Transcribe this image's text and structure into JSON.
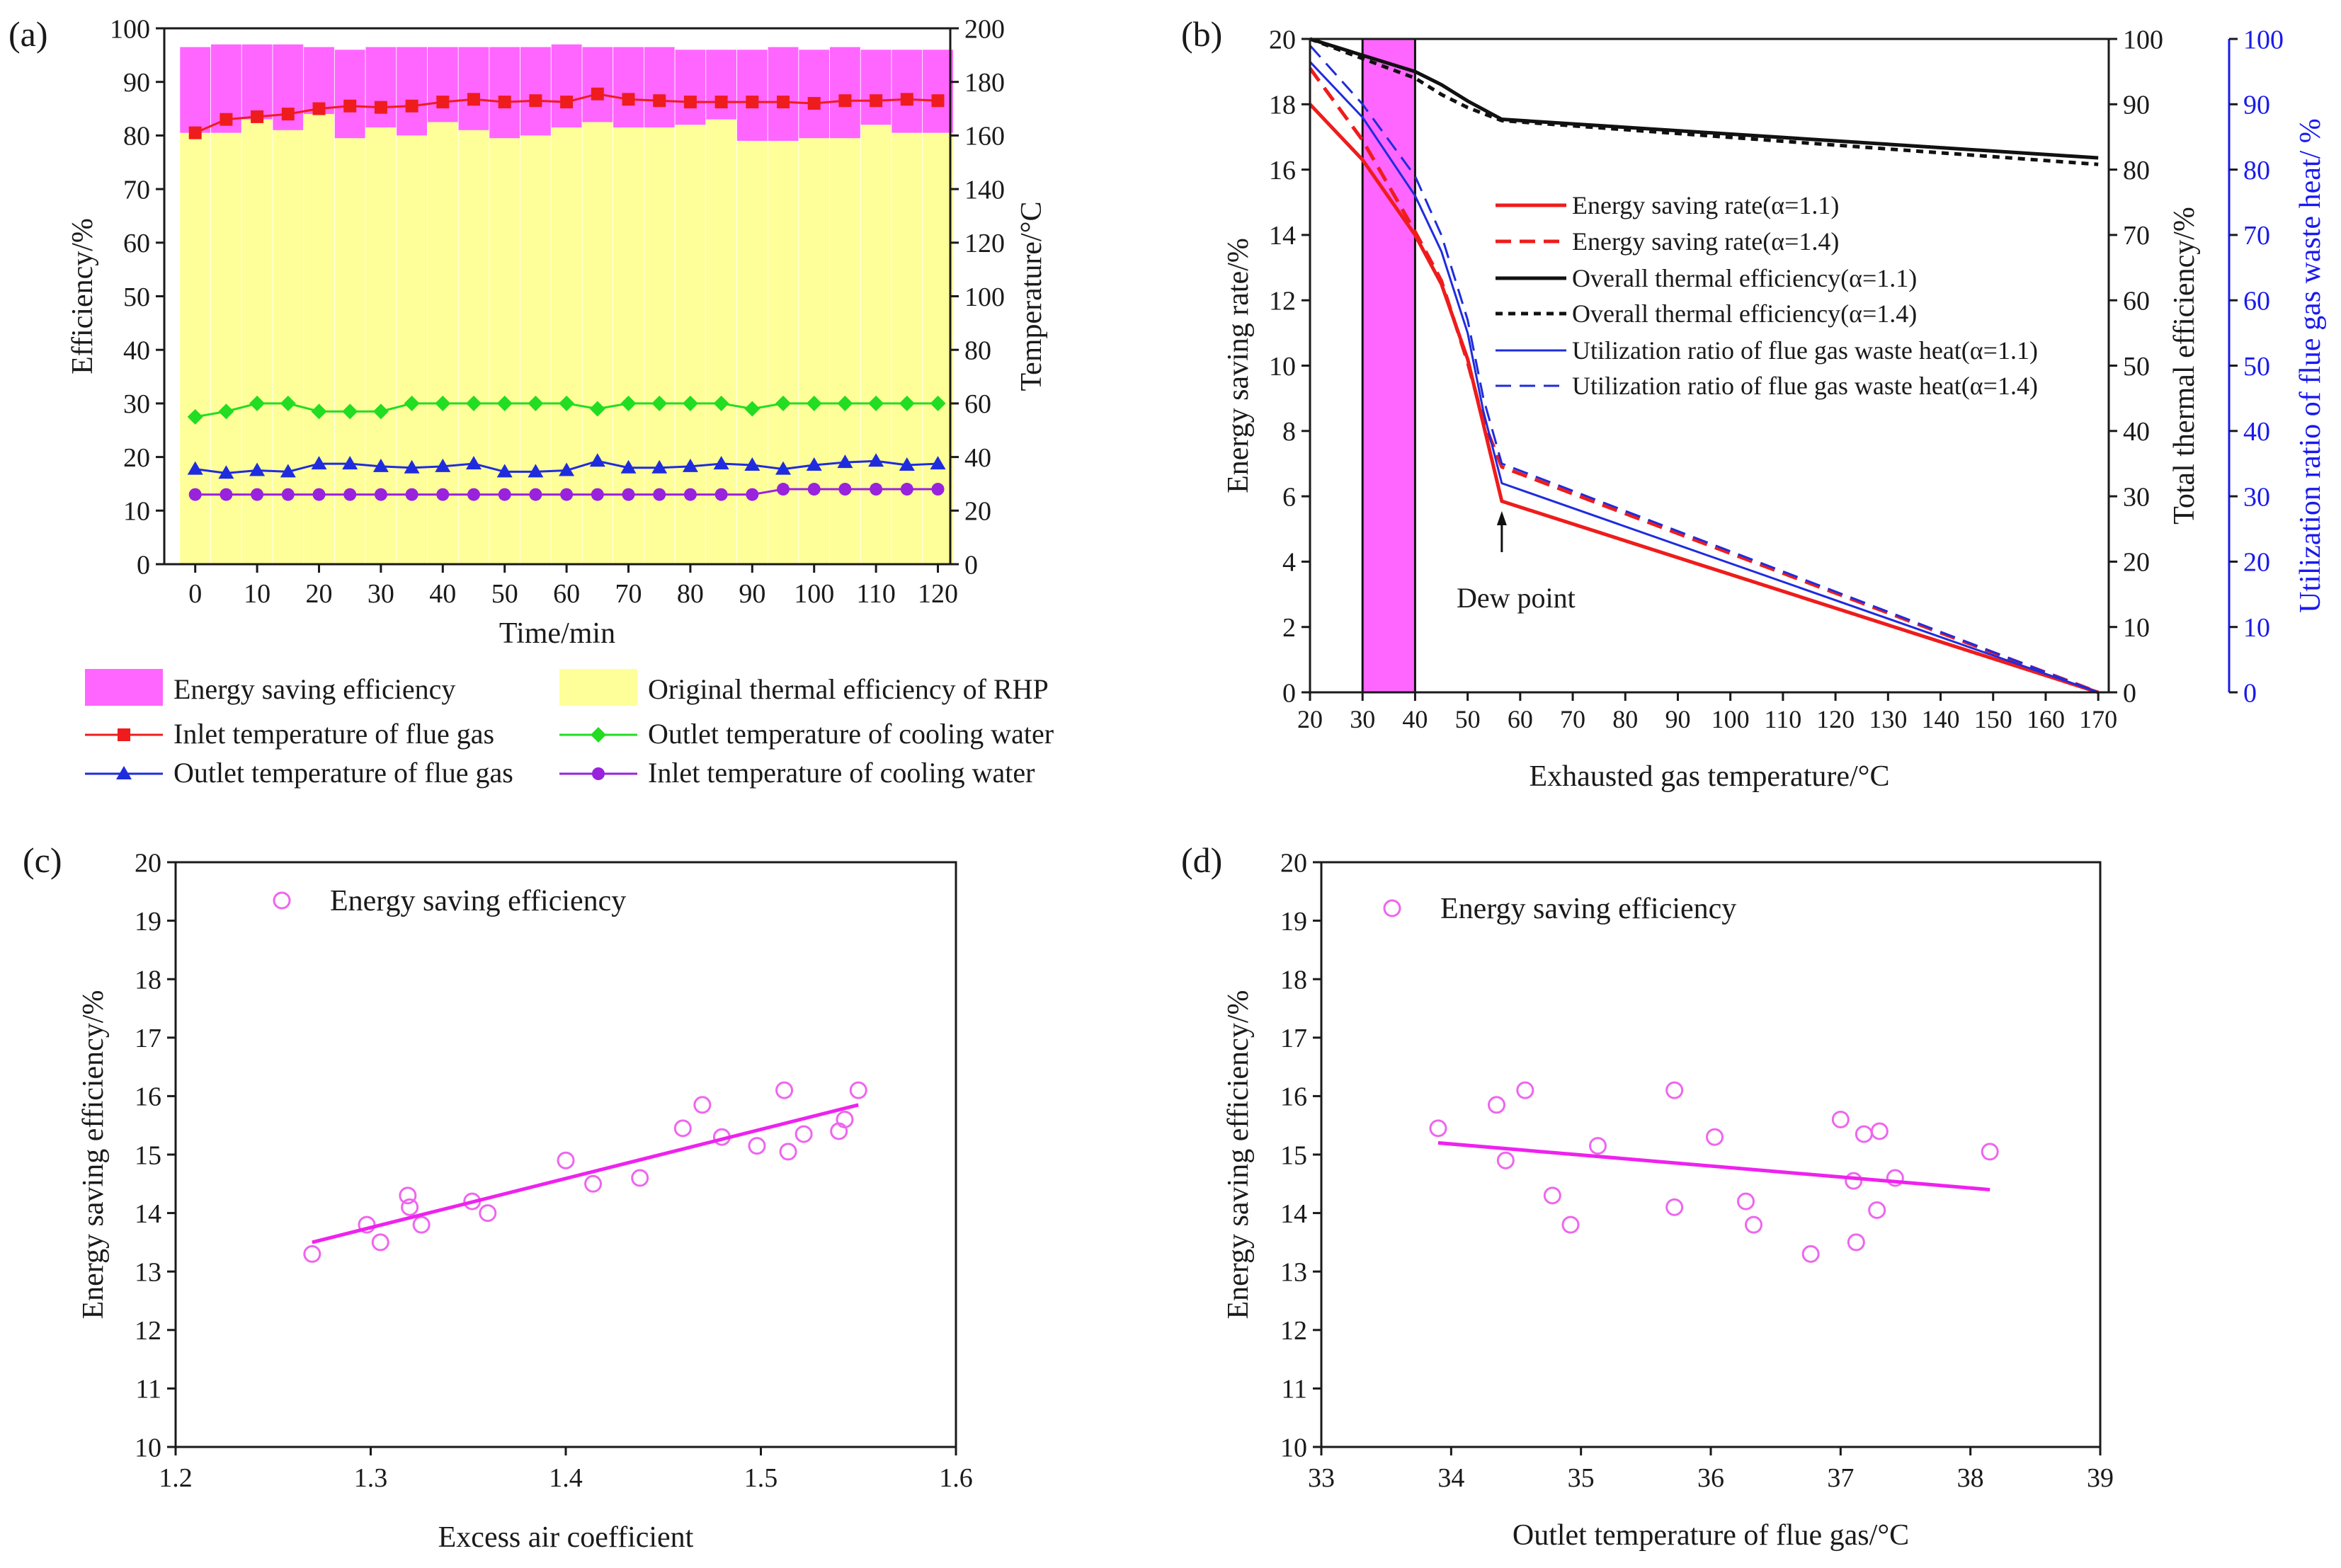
{
  "figure": {
    "panel_labels": [
      "(a)",
      "(b)",
      "(c)",
      "(d)"
    ],
    "annotation_dew_point": "Dew point"
  },
  "colors": {
    "magenta": "#ff66ff",
    "yellow": "#ffff99",
    "red": "#ee1c1c",
    "green": "#22dd22",
    "blue": "#1f2cdd",
    "purple": "#9922dd",
    "black": "#111111",
    "scatter": "#ee66ee",
    "fit": "#ee22ee",
    "axis_blue": "#1a1aee"
  },
  "chart_data": [
    {
      "id": "a",
      "type": "bar",
      "stacked": true,
      "xlabel": "Time/min",
      "ylabel": "Efficiency/%",
      "y2label": "Temperature/°C",
      "xlim": [
        -5,
        122
      ],
      "ylim": [
        0,
        100
      ],
      "y2lim": [
        0,
        200
      ],
      "xticks": [
        0,
        10,
        20,
        30,
        40,
        50,
        60,
        70,
        80,
        90,
        100,
        110,
        120
      ],
      "yticks": [
        0,
        10,
        20,
        30,
        40,
        50,
        60,
        70,
        80,
        90,
        100
      ],
      "y2ticks": [
        0,
        20,
        40,
        60,
        80,
        100,
        120,
        140,
        160,
        180,
        200
      ],
      "categories": [
        0,
        5,
        10,
        15,
        20,
        25,
        30,
        35,
        40,
        45,
        50,
        55,
        60,
        65,
        70,
        75,
        80,
        85,
        90,
        95,
        100,
        105,
        110,
        115,
        120
      ],
      "bar_series": [
        {
          "name": "Original thermal efficiency of RHP",
          "values": [
            80.5,
            80.5,
            83,
            81,
            84,
            79.5,
            81.5,
            80,
            82.5,
            81,
            79.5,
            80,
            81.5,
            82.5,
            81.5,
            81.5,
            82,
            83,
            79,
            79,
            79.5,
            79.5,
            82,
            80.5,
            80.5
          ]
        },
        {
          "name": "Energy saving efficiency",
          "values": [
            16,
            16.5,
            14,
            16,
            12.5,
            16.5,
            15,
            16.5,
            14,
            15.5,
            17,
            16.5,
            15.5,
            14,
            15,
            15,
            14,
            13,
            17,
            17.5,
            16.5,
            17,
            14,
            15.5,
            15.5
          ]
        }
      ],
      "line_series": [
        {
          "name": "Inlet temperature of flue gas",
          "axis": "right",
          "marker": "square",
          "x": [
            0,
            5,
            10,
            15,
            20,
            25,
            30,
            35,
            40,
            45,
            50,
            55,
            60,
            65,
            70,
            75,
            80,
            85,
            90,
            95,
            100,
            105,
            110,
            115,
            120
          ],
          "values": [
            161,
            166,
            167,
            168,
            170,
            171,
            170.5,
            171,
            172.5,
            173.5,
            172.5,
            173,
            172.5,
            175.5,
            173.5,
            173,
            172.5,
            172.5,
            172.5,
            172.5,
            172,
            173,
            173,
            173.5,
            173
          ]
        },
        {
          "name": "Outlet temperature of cooling water",
          "axis": "right",
          "marker": "diamond",
          "x": [
            0,
            5,
            10,
            15,
            20,
            25,
            30,
            35,
            40,
            45,
            50,
            55,
            60,
            65,
            70,
            75,
            80,
            85,
            90,
            95,
            100,
            105,
            110,
            115,
            120
          ],
          "values": [
            55,
            57,
            60,
            60,
            57,
            57,
            57,
            60,
            60,
            60,
            60,
            60,
            60,
            58,
            60,
            60,
            60,
            60,
            58,
            60,
            60,
            60,
            60,
            60,
            60
          ]
        },
        {
          "name": "Outlet temperature of flue gas",
          "axis": "right",
          "marker": "triangle",
          "x": [
            0,
            5,
            10,
            15,
            20,
            25,
            30,
            35,
            40,
            45,
            50,
            55,
            60,
            65,
            70,
            75,
            80,
            85,
            90,
            95,
            100,
            105,
            110,
            115,
            120
          ],
          "values": [
            35.5,
            34,
            35,
            34.5,
            37.5,
            37.5,
            36.5,
            36,
            36.5,
            37.5,
            34.5,
            34.5,
            35,
            38.5,
            36,
            36,
            36.5,
            37.5,
            37,
            35.5,
            37,
            38,
            38.5,
            37,
            37.5
          ]
        },
        {
          "name": "Inlet temperature of cooling water",
          "axis": "right",
          "marker": "circle",
          "x": [
            0,
            5,
            10,
            15,
            20,
            25,
            30,
            35,
            40,
            45,
            50,
            55,
            60,
            65,
            70,
            75,
            80,
            85,
            90,
            95,
            100,
            105,
            110,
            115,
            120
          ],
          "values": [
            26,
            26,
            26,
            26,
            26,
            26,
            26,
            26,
            26,
            26,
            26,
            26,
            26,
            26,
            26,
            26,
            26,
            26,
            26,
            28,
            28,
            28,
            28,
            28,
            28
          ]
        }
      ],
      "legend": [
        {
          "label": "Energy saving efficiency",
          "kind": "patch",
          "color": "#ff66ff"
        },
        {
          "label": "Original thermal efficiency of RHP",
          "kind": "patch",
          "color": "#ffff99"
        },
        {
          "label": "Inlet temperature of flue gas",
          "kind": "line",
          "color": "#ee1c1c",
          "marker": "square"
        },
        {
          "label": "Outlet temperature of cooling water",
          "kind": "line",
          "color": "#22dd22",
          "marker": "diamond"
        },
        {
          "label": "Outlet temperature of flue gas",
          "kind": "line",
          "color": "#1f2cdd",
          "marker": "triangle"
        },
        {
          "label": "Inlet temperature of cooling water",
          "kind": "line",
          "color": "#9922dd",
          "marker": "circle"
        }
      ]
    },
    {
      "id": "b",
      "type": "line",
      "xlabel": "Exhausted gas temperature/°C",
      "ylabel": "Energy saving rate/%",
      "y2label": "Total thermal efficiency/%",
      "y3label": "Utilization ratio of flue gas waste heat/ %",
      "xlim": [
        20,
        172
      ],
      "ylim": [
        0,
        20
      ],
      "y2lim": [
        0,
        100
      ],
      "y3lim": [
        0,
        100
      ],
      "xticks": [
        20,
        30,
        40,
        50,
        60,
        70,
        80,
        90,
        100,
        110,
        120,
        130,
        140,
        150,
        160,
        170
      ],
      "yticks": [
        0,
        2,
        4,
        6,
        8,
        10,
        12,
        14,
        16,
        18,
        20
      ],
      "y2ticks": [
        0,
        10,
        20,
        30,
        40,
        50,
        60,
        70,
        80,
        90,
        100
      ],
      "y3ticks": [
        0,
        10,
        20,
        30,
        40,
        50,
        60,
        70,
        80,
        90,
        100
      ],
      "shaded_band": {
        "from": 30,
        "to": 40
      },
      "dew_point_x": 56.5,
      "series": [
        {
          "name": "Energy saving rate(α=1.1)",
          "axis": "left",
          "style": "solid",
          "color": "#ee1c1c",
          "width": 5,
          "x": [
            20,
            30,
            40,
            45,
            50,
            53,
            56.5,
            170
          ],
          "y": [
            18,
            16.3,
            14.0,
            12.5,
            10.2,
            8.2,
            5.85,
            0
          ]
        },
        {
          "name": "Energy saving rate(α=1.4)",
          "axis": "left",
          "style": "dashed",
          "color": "#ee1c1c",
          "width": 5,
          "x": [
            20,
            30,
            40,
            45,
            50,
            53,
            56.5,
            170
          ],
          "y": [
            19.1,
            16.9,
            14.1,
            12.6,
            10.1,
            8.3,
            6.9,
            0
          ]
        },
        {
          "name": "Overall thermal efficiency(α=1.1)",
          "axis": "right",
          "style": "solid",
          "color": "#111111",
          "width": 5,
          "x": [
            20,
            30,
            40,
            45,
            50,
            56.5,
            170
          ],
          "y": [
            100,
            97.5,
            95,
            93,
            90.5,
            87.7,
            81.8
          ]
        },
        {
          "name": "Overall thermal efficiency(α=1.4)",
          "axis": "right",
          "style": "dotted",
          "color": "#111111",
          "width": 5,
          "x": [
            20,
            30,
            40,
            45,
            50,
            56.5,
            170
          ],
          "y": [
            100,
            97,
            94,
            91.5,
            89.5,
            87.5,
            80.8
          ]
        },
        {
          "name": "Utilization ratio of flue gas waste heat(α=1.1)",
          "axis": "right2",
          "style": "solid",
          "color": "#1f2cdd",
          "width": 3,
          "x": [
            20,
            30,
            40,
            45,
            50,
            53,
            56.5,
            170
          ],
          "y": [
            96.5,
            88,
            76,
            67.5,
            55,
            43,
            32,
            0
          ]
        },
        {
          "name": "Utilization ratio of flue gas waste heat(α=1.4)",
          "axis": "right2",
          "style": "dashed",
          "color": "#1f2cdd",
          "width": 3,
          "x": [
            20,
            30,
            40,
            45,
            50,
            53,
            56.5,
            170
          ],
          "y": [
            99,
            90,
            79,
            70,
            57,
            45,
            35,
            0
          ]
        }
      ]
    },
    {
      "id": "c",
      "type": "scatter",
      "xlabel": "Excess air coefficient",
      "ylabel": "Energy saving efficiency/%",
      "xlim": [
        1.2,
        1.6
      ],
      "ylim": [
        10,
        20
      ],
      "xticks": [
        1.2,
        1.3,
        1.4,
        1.5,
        1.6
      ],
      "yticks": [
        10,
        11,
        12,
        13,
        14,
        15,
        16,
        17,
        18,
        19,
        20
      ],
      "legend": "Energy saving efficiency",
      "points": [
        [
          1.27,
          13.3
        ],
        [
          1.298,
          13.8
        ],
        [
          1.305,
          13.5
        ],
        [
          1.319,
          14.3
        ],
        [
          1.32,
          14.1
        ],
        [
          1.326,
          13.8
        ],
        [
          1.352,
          14.2
        ],
        [
          1.36,
          14.0
        ],
        [
          1.4,
          14.9
        ],
        [
          1.414,
          14.5
        ],
        [
          1.438,
          14.6
        ],
        [
          1.46,
          15.45
        ],
        [
          1.47,
          15.85
        ],
        [
          1.48,
          15.3
        ],
        [
          1.498,
          15.15
        ],
        [
          1.512,
          16.1
        ],
        [
          1.514,
          15.05
        ],
        [
          1.522,
          15.35
        ],
        [
          1.54,
          15.4
        ],
        [
          1.543,
          15.6
        ],
        [
          1.55,
          16.1
        ]
      ],
      "fit_line": {
        "x": [
          1.27,
          1.55
        ],
        "y": [
          13.5,
          15.85
        ]
      }
    },
    {
      "id": "d",
      "type": "scatter",
      "xlabel": "Outlet temperature of flue gas/°C",
      "ylabel": "Energy saving efficiency/%",
      "xlim": [
        33,
        39
      ],
      "ylim": [
        10,
        20
      ],
      "xticks": [
        33,
        34,
        35,
        36,
        37,
        38,
        39
      ],
      "yticks": [
        10,
        11,
        12,
        13,
        14,
        15,
        16,
        17,
        18,
        19,
        20
      ],
      "legend": "Energy saving efficiency",
      "points": [
        [
          33.9,
          15.45
        ],
        [
          34.35,
          15.85
        ],
        [
          34.42,
          14.9
        ],
        [
          34.57,
          16.1
        ],
        [
          34.78,
          14.3
        ],
        [
          34.92,
          13.8
        ],
        [
          35.13,
          15.15
        ],
        [
          35.72,
          16.1
        ],
        [
          35.72,
          14.1
        ],
        [
          36.03,
          15.3
        ],
        [
          36.27,
          14.2
        ],
        [
          36.33,
          13.8
        ],
        [
          36.77,
          13.3
        ],
        [
          37.0,
          15.6
        ],
        [
          37.1,
          14.55
        ],
        [
          37.12,
          13.5
        ],
        [
          37.18,
          15.35
        ],
        [
          37.28,
          14.05
        ],
        [
          37.3,
          15.4
        ],
        [
          37.42,
          14.6
        ],
        [
          38.15,
          15.05
        ]
      ],
      "fit_line": {
        "x": [
          33.9,
          38.15
        ],
        "y": [
          15.2,
          14.4
        ]
      }
    }
  ]
}
